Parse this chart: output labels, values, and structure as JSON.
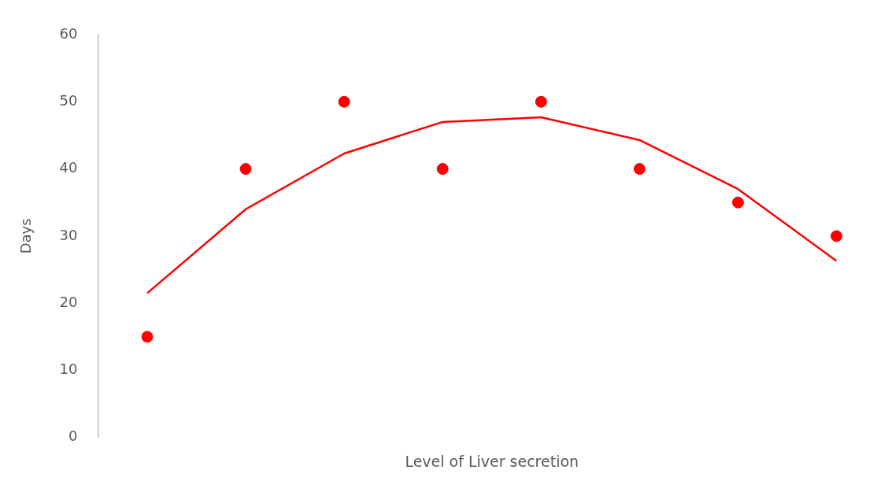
{
  "chart_data": {
    "type": "line",
    "xlabel": "Level of Liver secretion",
    "ylabel": "Days",
    "categories": [
      null,
      null,
      null,
      null,
      null,
      null,
      null,
      null
    ],
    "ylim": [
      0,
      60
    ],
    "yticks": [
      0,
      10,
      20,
      30,
      40,
      50,
      60
    ],
    "grid": false,
    "legend": false,
    "series": [
      {
        "color": "#ff0000",
        "line_style": "solid",
        "marker": "none",
        "values": [
          21.5,
          34,
          42.3,
          47,
          47.7,
          44.3,
          37,
          26.3
        ]
      },
      {
        "type": "scatter",
        "color": "#ff0000",
        "marker": "circle",
        "values": [
          15,
          40,
          50,
          40,
          50,
          40,
          35,
          30
        ]
      }
    ]
  }
}
